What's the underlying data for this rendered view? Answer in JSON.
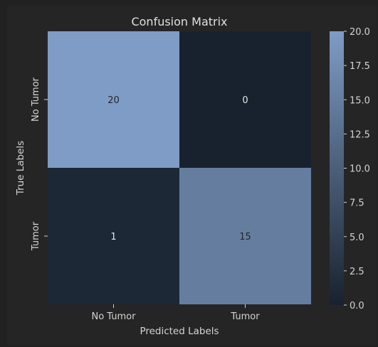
{
  "chart_data": {
    "type": "heatmap",
    "title": "Confusion Matrix",
    "xlabel": "Predicted Labels",
    "ylabel": "True Labels",
    "x_categories": [
      "No Tumor",
      "Tumor"
    ],
    "y_categories": [
      "No Tumor",
      "Tumor"
    ],
    "values": [
      [
        20,
        0
      ],
      [
        1,
        15
      ]
    ],
    "colorbar": {
      "range": [
        0,
        20
      ],
      "ticks": [
        "0.0",
        "2.5",
        "5.0",
        "7.5",
        "10.0",
        "12.5",
        "15.0",
        "17.5",
        "20.0"
      ],
      "low_color": "#18222e",
      "high_color": "#7f9cc6"
    },
    "grid": false
  }
}
